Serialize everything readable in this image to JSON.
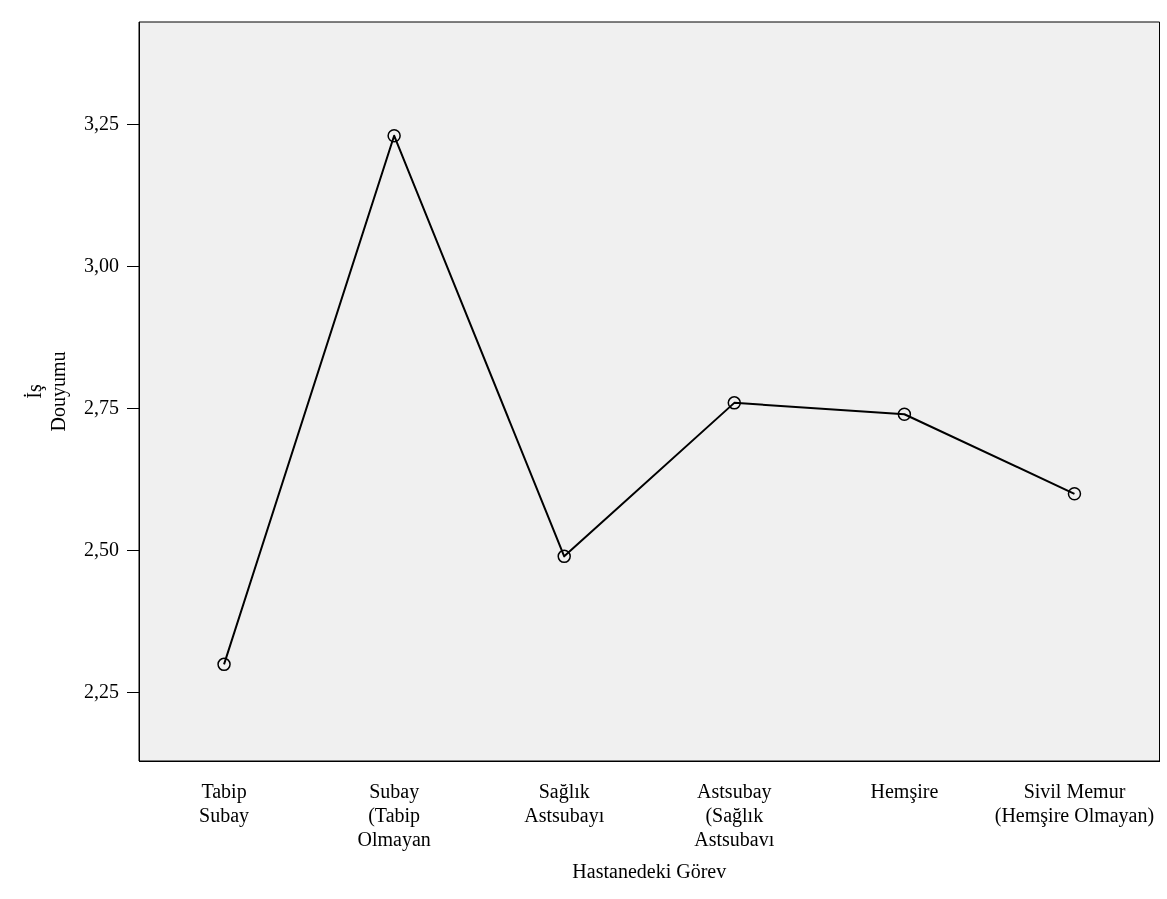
{
  "chart_data": {
    "type": "line",
    "xlabel": "Hastanedeki Görev",
    "ylabel": "İş\nDouyumu",
    "categories": [
      "Tabip\nSubay",
      "Subay\n(Tabip\nOlmayan",
      "Sağlık\nAstsubayı",
      "Astsubay\n(Sağlık\nAstsubavı",
      "Hemşire",
      "Sivil Memur\n(Hemşire Olmayan)"
    ],
    "series": [
      {
        "color": "#000000",
        "values": [
          2.3,
          3.23,
          2.49,
          2.76,
          2.74,
          2.6
        ]
      }
    ],
    "ylim": [
      2.13,
      3.43
    ],
    "yticks": [
      {
        "value": 2.25,
        "label": "2,25"
      },
      {
        "value": 2.5,
        "label": "2,50"
      },
      {
        "value": 2.75,
        "label": "2,75"
      },
      {
        "value": 3,
        "label": "3,00"
      },
      {
        "value": 3.25,
        "label": "3,25"
      }
    ],
    "grid": false,
    "legend": false,
    "marker": "circle",
    "line_style": "solid"
  }
}
